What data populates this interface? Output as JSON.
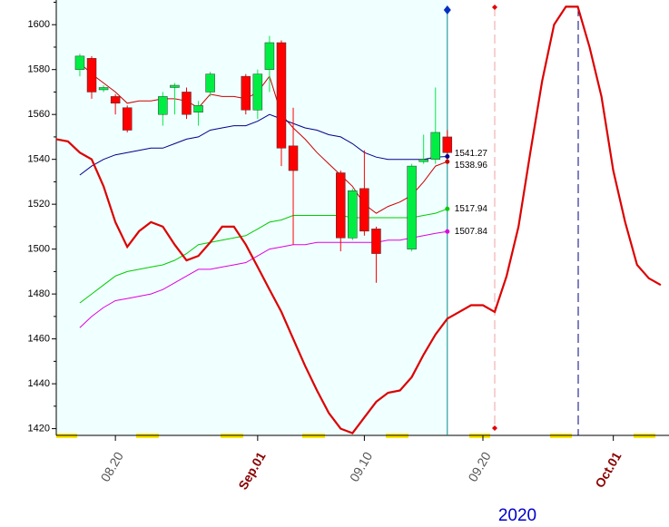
{
  "chart_data": {
    "type": "candlestick",
    "x_axis_label": "2020",
    "categories": [
      null,
      null,
      null,
      null,
      null,
      "08.20",
      null,
      null,
      null,
      null,
      null,
      null,
      null,
      null,
      null,
      null,
      null,
      "Sep.01",
      null,
      null,
      null,
      null,
      null,
      null,
      null,
      null,
      "09.10",
      null,
      null,
      null,
      null,
      null,
      null,
      null,
      null,
      null,
      "09.20",
      null,
      null,
      null,
      null,
      null,
      null,
      null,
      null,
      null,
      null,
      "Oct.01",
      null,
      null,
      null,
      null
    ],
    "open": [
      null,
      null,
      1580,
      1585,
      1571,
      1568,
      1563,
      null,
      null,
      1560,
      1572,
      1570,
      1561,
      1570,
      null,
      null,
      1577,
      1562,
      1580,
      1592,
      1546,
      null,
      null,
      null,
      1534,
      1505,
      1527,
      1509,
      null,
      null,
      1500,
      1539,
      1540,
      1550,
      null,
      null,
      null,
      null,
      null,
      null,
      null,
      null,
      null,
      null,
      null,
      null,
      null,
      null,
      null,
      null,
      null,
      null
    ],
    "high": [
      null,
      null,
      1587,
      1586,
      1573,
      1569,
      1564,
      null,
      null,
      1570,
      1574,
      1572,
      1566,
      1579,
      null,
      null,
      1578,
      1580,
      1595,
      1593,
      1563,
      null,
      null,
      null,
      1535,
      1527,
      1544,
      1510,
      null,
      null,
      1538,
      1551,
      1572,
      1553,
      null,
      null,
      null,
      null,
      null,
      null,
      null,
      null,
      null,
      null,
      null,
      null,
      null,
      null,
      null,
      null,
      null,
      null
    ],
    "low": [
      null,
      null,
      1577,
      1567,
      1570,
      1560,
      1552,
      null,
      null,
      1555,
      1560,
      1558,
      1555,
      1568,
      null,
      null,
      1560,
      1558,
      1570,
      1537,
      1502,
      null,
      null,
      null,
      1499,
      1504,
      1506,
      1485,
      null,
      null,
      1499,
      1538,
      1538,
      1539,
      null,
      null,
      null,
      null,
      null,
      null,
      null,
      null,
      null,
      null,
      null,
      null,
      null,
      null,
      null,
      null,
      null,
      null
    ],
    "close": [
      null,
      null,
      1586,
      1570,
      1572,
      1565,
      1553,
      null,
      null,
      1568,
      1573,
      1560,
      1564,
      1578,
      null,
      null,
      1562,
      1578,
      1592,
      1545,
      1535,
      null,
      null,
      null,
      1505,
      1526,
      1508,
      1498,
      null,
      null,
      1537,
      1540,
      1552,
      1543,
      null,
      null,
      null,
      null,
      null,
      null,
      null,
      null,
      null,
      null,
      null,
      null,
      null,
      null,
      null,
      null,
      null,
      null
    ],
    "up_color": "#00ee44",
    "down_color": "#ff0000",
    "series": [
      {
        "color": "#cc0000",
        "width": 1,
        "end_label": "1538.96",
        "values": [
          null,
          null,
          1583,
          1578,
          1574,
          1570,
          1565,
          1566,
          1566,
          1567,
          1567,
          1566,
          1563,
          1569,
          1568,
          1568,
          1567,
          1570,
          1577,
          1560,
          1554,
          1549,
          1543,
          1538,
          1533,
          1528,
          1520,
          1516,
          1519,
          1521,
          1524,
          1530,
          1537,
          1538.96,
          null,
          null,
          null,
          null,
          null,
          null,
          null,
          null,
          null,
          null,
          null,
          null,
          null,
          null,
          null,
          null,
          null,
          null
        ]
      },
      {
        "color": "#00008b",
        "width": 1,
        "end_label": "1541.27",
        "values": [
          null,
          null,
          1533,
          1537,
          1540,
          1542,
          1543,
          1544,
          1545,
          1545,
          1547,
          1549,
          1550,
          1553,
          1554,
          1555,
          1555,
          1557,
          1560,
          1558,
          1556,
          1554,
          1553,
          1551,
          1550,
          1547,
          1543,
          1541,
          1540,
          1540,
          1540,
          1540,
          1541,
          1541.27,
          null,
          null,
          null,
          null,
          null,
          null,
          null,
          null,
          null,
          null,
          null,
          null,
          null,
          null,
          null,
          null,
          null,
          null
        ]
      },
      {
        "color": "#00cc00",
        "width": 1,
        "end_label": "1517.94",
        "values": [
          null,
          null,
          1476,
          1480,
          1484,
          1488,
          1490,
          1491,
          1492,
          1493,
          1495,
          1498,
          1502,
          1503,
          1504,
          1505,
          1506,
          1509,
          1512,
          1513,
          1515,
          1515,
          1515,
          1515,
          1515,
          1514,
          1514,
          1514,
          1514,
          1514,
          1514,
          1515,
          1516,
          1517.94,
          null,
          null,
          null,
          null,
          null,
          null,
          null,
          null,
          null,
          null,
          null,
          null,
          null,
          null,
          null,
          null,
          null,
          null
        ]
      },
      {
        "color": "#e000e0",
        "width": 1,
        "end_label": "1507.84",
        "values": [
          null,
          null,
          1465,
          1470,
          1474,
          1477,
          1478,
          1479,
          1480,
          1482,
          1485,
          1488,
          1491,
          1491,
          1492,
          1493,
          1494,
          1497,
          1500,
          1501,
          1502,
          1502,
          1503,
          1503,
          1503,
          1503,
          1503,
          1503,
          1504,
          1504,
          1505,
          1506,
          1507,
          1507.84,
          null,
          null,
          null,
          null,
          null,
          null,
          null,
          null,
          null,
          null,
          null,
          null,
          null,
          null,
          null,
          null,
          null,
          null
        ]
      },
      {
        "color": "#dd0000",
        "width": 2.2,
        "values": [
          1549,
          1548,
          1543,
          1540,
          1528,
          1512,
          1501,
          1508,
          1512,
          1510,
          1502,
          1495,
          1497,
          1503,
          1510,
          1510,
          1502,
          1492,
          1482,
          1472,
          1460,
          1448,
          1437,
          1427,
          1420,
          1418,
          1425,
          1432,
          1436,
          1437,
          1443,
          1453,
          1462,
          1469,
          1472,
          1475,
          1475,
          1472,
          1488,
          1510,
          1543,
          1575,
          1600,
          1608,
          1608,
          1590,
          1568,
          1535,
          1512,
          1493,
          1487,
          1484
        ]
      }
    ],
    "ylim": [
      1417,
      1611
    ],
    "yticks": [
      1420,
      1440,
      1460,
      1480,
      1500,
      1520,
      1540,
      1560,
      1580,
      1600
    ]
  }
}
